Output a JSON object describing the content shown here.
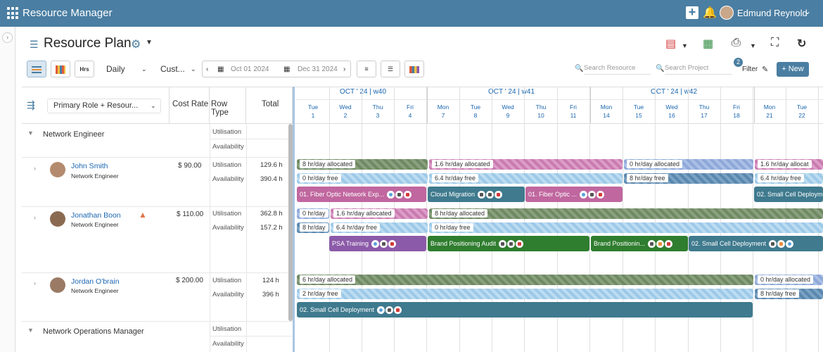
{
  "app": {
    "title": "Resource Manager",
    "user": "Edmund Reynold"
  },
  "page": {
    "title": "Resource Plan"
  },
  "toolbar": {
    "view_mode": "Daily",
    "range_mode": "Cust...",
    "date_from": "Oct 01 2024",
    "date_to": "Dec 31 2024",
    "search_resource_placeholder": "Search Resource",
    "search_project_placeholder": "Search Project",
    "filter_label": "Filter",
    "filter_count": "2",
    "new_label": "New",
    "hrs_label": "Hrs"
  },
  "grid": {
    "group_by": "Primary Role + Resour...",
    "col_cost_rate": "Cost Rate",
    "col_row_type": "Row Type",
    "col_total": "Total"
  },
  "weeks": [
    "OCT ' 24 | w40",
    "OCT ' 24 | w41",
    "OCT ' 24 | w42"
  ],
  "days": [
    {
      "d": "Tue",
      "n": "1"
    },
    {
      "d": "Wed",
      "n": "2"
    },
    {
      "d": "Thu",
      "n": "3"
    },
    {
      "d": "Fri",
      "n": "4"
    },
    {
      "d": "Mon",
      "n": "7"
    },
    {
      "d": "Tue",
      "n": "8"
    },
    {
      "d": "Wed",
      "n": "9"
    },
    {
      "d": "Thu",
      "n": "10"
    },
    {
      "d": "Fri",
      "n": "11"
    },
    {
      "d": "Mon",
      "n": "14"
    },
    {
      "d": "Tue",
      "n": "15"
    },
    {
      "d": "Wed",
      "n": "16"
    },
    {
      "d": "Thu",
      "n": "17"
    },
    {
      "d": "Fri",
      "n": "18"
    },
    {
      "d": "Mon",
      "n": "21"
    },
    {
      "d": "Tue",
      "n": "22"
    }
  ],
  "row_types": {
    "util": "Utilisation",
    "avail": "Availability"
  },
  "groups": [
    {
      "name": "Network Engineer"
    },
    {
      "name": "Network Operations Manager"
    }
  ],
  "resources": [
    {
      "name": "John Smith",
      "role": "Network Engineer",
      "rate": "$ 90.00",
      "util_total": "129.6 h",
      "avail_total": "390.4 h"
    },
    {
      "name": "Jonathan Boon",
      "role": "Network Engineer",
      "rate": "$ 110.00",
      "util_total": "362.8 h",
      "avail_total": "157.2 h"
    },
    {
      "name": "Jordan O'brain",
      "role": "Network Engineer",
      "rate": "$ 200.00",
      "util_total": "124 h",
      "avail_total": "396 h"
    }
  ],
  "bars": {
    "js_u1": "8 hr/day allocated",
    "js_u2": "1.6 hr/day allocated",
    "js_u3": "0 hr/day allocated",
    "js_u4": "1.6 hr/day allocat",
    "js_a1": "0 hr/day free",
    "js_a2": "6.4 hr/day free",
    "js_a3": "8 hr/day free",
    "js_a4": "6.4 hr/day free",
    "jb_u1": "0 hr/day",
    "jb_u2": "1.6 hr/day allocated",
    "jb_u3": "8 hr/day allocated",
    "jb_a1": "8 hr/day",
    "jb_a2": "6.4 hr/day free",
    "jb_a3": "0 hr/day free",
    "jo_u1": "6 hr/day allocated",
    "jo_u2": "0 hr/day allocated",
    "jo_a1": "2 hr/day free",
    "jo_a2": "8 hr/day free"
  },
  "tasks": {
    "js_t1": "01. Fiber Optic Network Exp...",
    "js_t2": "Cloud Migration",
    "js_t3": "01. Fiber Optic ...",
    "js_t4": "02. Small Cell Deploym",
    "jb_t1": "PSA Training",
    "jb_t2": "Brand Positioning Audit",
    "jb_t3": "Brand Positionin...",
    "jb_t4": "02. Small Cell Deployment",
    "jo_t1": "02. Small Cell Deployment"
  },
  "colors": {
    "header": "#4a7ea2",
    "task_pink": "#c0679f",
    "task_teal": "#3f7a8e",
    "task_purple": "#8b5aa8",
    "task_green": "#2f7d2f"
  }
}
